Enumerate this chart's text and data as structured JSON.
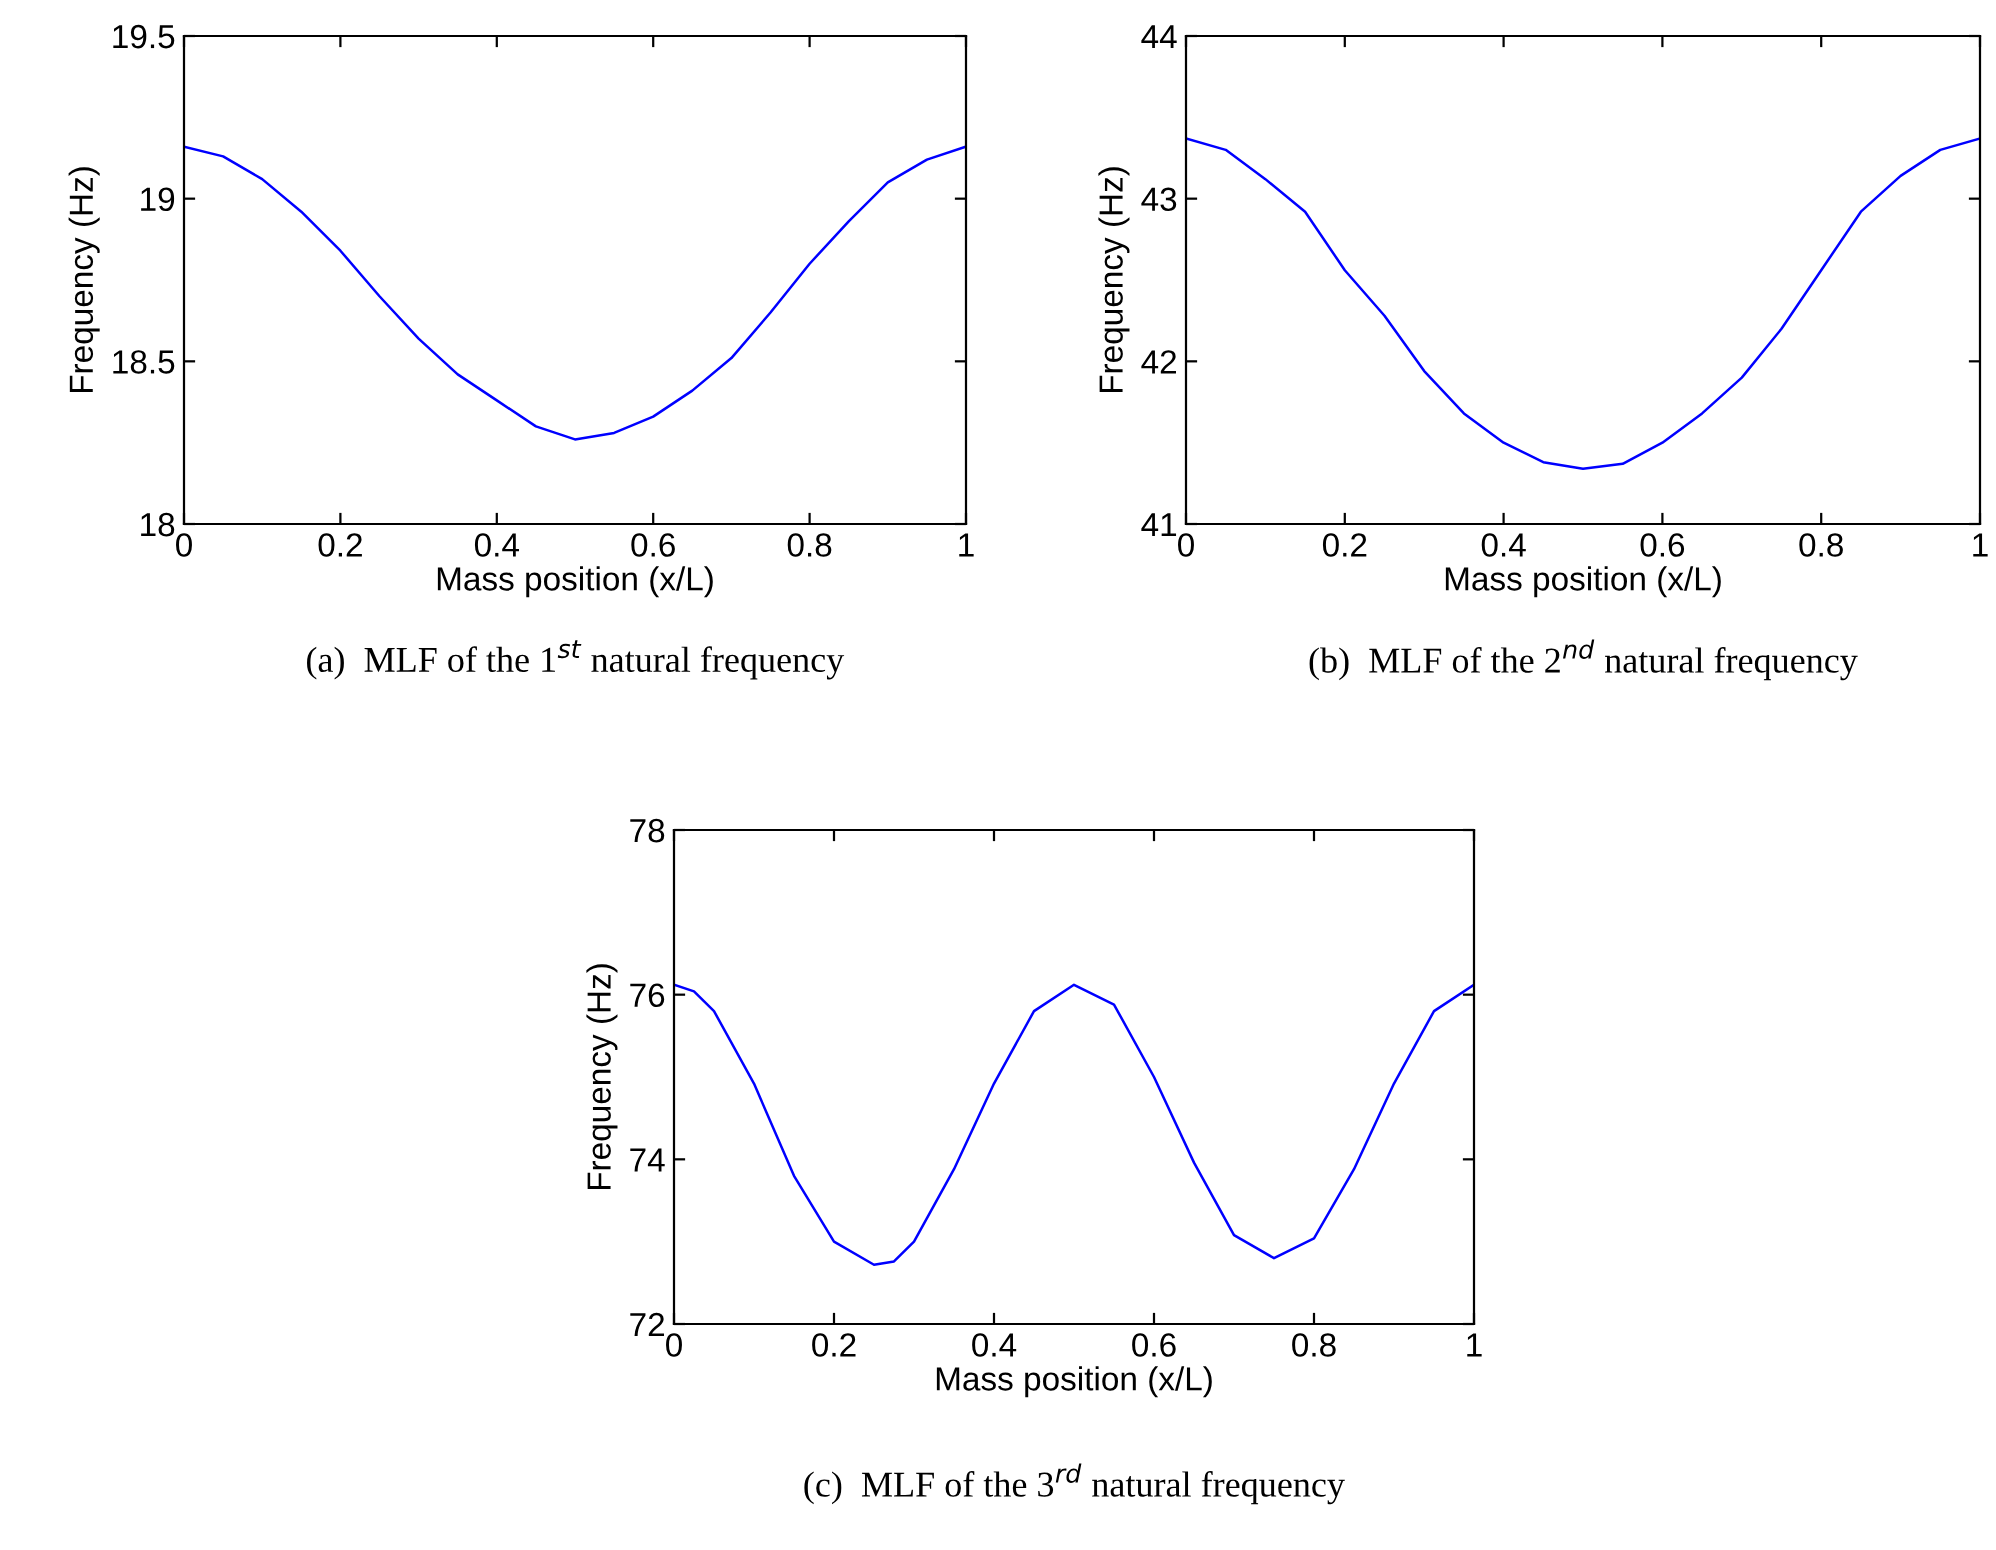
{
  "chart_data": [
    {
      "type": "line",
      "xlabel": "Mass position (x/L)",
      "ylabel": "Frequency (Hz)",
      "annotations": [
        "(a)  MLF of the 1$^{st}$ natural frequency"
      ],
      "x": [
        0,
        0.05,
        0.1,
        0.15,
        0.2,
        0.25,
        0.3,
        0.35,
        0.4,
        0.45,
        0.5,
        0.55,
        0.6,
        0.65,
        0.7,
        0.75,
        0.8,
        0.85,
        0.9,
        0.95,
        1
      ],
      "series": [
        {
          "color": "#0000ff",
          "values": [
            19.16,
            19.13,
            19.06,
            18.96,
            18.84,
            18.7,
            18.57,
            18.46,
            18.38,
            18.3,
            18.26,
            18.28,
            18.33,
            18.41,
            18.51,
            18.65,
            18.8,
            18.93,
            19.05,
            19.12,
            19.16
          ]
        }
      ],
      "xlim": [
        0,
        1
      ],
      "ylim": [
        18,
        19.5
      ],
      "xticks": [
        0,
        0.2,
        0.4,
        0.6,
        0.8,
        1
      ],
      "yticks": [
        18,
        18.5,
        19,
        19.5
      ]
    },
    {
      "type": "line",
      "xlabel": "Mass position (x/L)",
      "ylabel": "Frequency (Hz)",
      "annotations": [
        "(b)  MLF of the 2$^{nd}$ natural frequency"
      ],
      "x": [
        0,
        0.05,
        0.1,
        0.15,
        0.2,
        0.25,
        0.3,
        0.35,
        0.4,
        0.45,
        0.5,
        0.55,
        0.6,
        0.65,
        0.7,
        0.75,
        0.8,
        0.85,
        0.9,
        0.95,
        1
      ],
      "series": [
        {
          "color": "#0000ff",
          "values": [
            43.37,
            43.3,
            43.12,
            42.92,
            42.56,
            42.28,
            41.94,
            41.68,
            41.5,
            41.38,
            41.34,
            41.37,
            41.5,
            41.68,
            41.9,
            42.2,
            42.56,
            42.92,
            43.14,
            43.3,
            43.37
          ]
        }
      ],
      "xlim": [
        0,
        1
      ],
      "ylim": [
        41,
        44
      ],
      "xticks": [
        0,
        0.2,
        0.4,
        0.6,
        0.8,
        1
      ],
      "yticks": [
        41,
        42,
        43,
        44
      ]
    },
    {
      "type": "line",
      "xlabel": "Mass position (x/L)",
      "ylabel": "Frequency (Hz)",
      "annotations": [
        "(c)  MLF of the 3$^{rd}$ natural frequency"
      ],
      "x": [
        0,
        0.025,
        0.05,
        0.1,
        0.15,
        0.2,
        0.25,
        0.275,
        0.3,
        0.35,
        0.4,
        0.45,
        0.5,
        0.55,
        0.6,
        0.65,
        0.7,
        0.75,
        0.8,
        0.85,
        0.9,
        0.95,
        1
      ],
      "series": [
        {
          "color": "#0000ff",
          "values": [
            76.12,
            76.04,
            75.8,
            74.92,
            73.8,
            73.0,
            72.72,
            72.76,
            73.0,
            73.88,
            74.92,
            75.8,
            76.12,
            75.88,
            75.0,
            73.96,
            73.08,
            72.8,
            73.04,
            73.88,
            74.92,
            75.8,
            76.12
          ]
        }
      ],
      "xlim": [
        0,
        1
      ],
      "ylim": [
        72,
        78
      ],
      "xticks": [
        0,
        0.2,
        0.4,
        0.6,
        0.8,
        1
      ],
      "yticks": [
        72,
        74,
        76,
        78
      ]
    }
  ]
}
